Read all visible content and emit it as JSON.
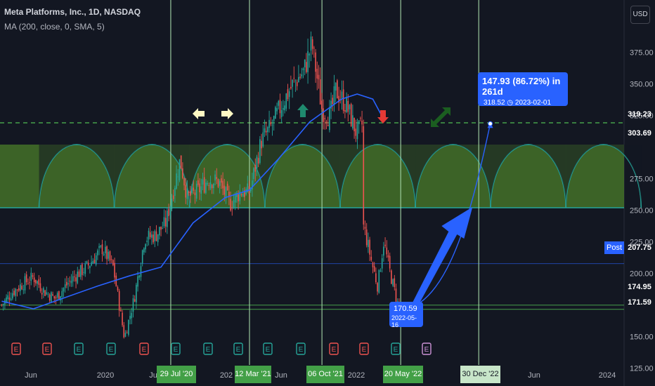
{
  "header": {
    "title": "Meta Platforms, Inc., 1D, NASDAQ",
    "indicator": "MA (200, close, 0, SMA, 5)"
  },
  "currency": "USD",
  "colors": {
    "bg": "#131722",
    "grid": "#1e2230",
    "text": "#d1d4dc",
    "up": "#26a69a",
    "down": "#ef5350",
    "ma": "#2962ff",
    "vline": "#a5d6a7",
    "zone": "#4b7d2a",
    "arc": "#26a69a",
    "dashed": "#4caf50",
    "projection": "#2962ff",
    "arrow_yellow": "#fff9c4",
    "arrow_green": "#1f8a6e",
    "arrow_red": "#e53935",
    "arrow_dark": "#1b5e20"
  },
  "price_axis": {
    "ticks": [
      "375.00",
      "350.00",
      "325.00",
      "275.00",
      "250.00",
      "225.00",
      "200.00",
      "150.00",
      "125.00"
    ],
    "tags": [
      {
        "label": "319.23",
        "bg": "#4caf50"
      },
      {
        "label": "303.69",
        "bg": "#2962ff"
      },
      {
        "label": "207.75",
        "bg": "#2962ff"
      },
      {
        "label": "174.95",
        "bg": "#388e3c"
      },
      {
        "label": "171.59",
        "bg": "#43a047"
      }
    ],
    "post_label": "Post"
  },
  "time_axis": {
    "labels": [
      "Jun",
      "2020",
      "Ju",
      "202",
      "Jun",
      "2022",
      "Jun",
      "2024"
    ],
    "marked_dates": [
      "29 Jul '20",
      "12 Mar '21",
      "06 Oct '21",
      "20 May '22",
      "30 Dec '22"
    ]
  },
  "annotations": {
    "projection_main": "147.93 (86.72%) in 261d",
    "projection_sub": "318.52",
    "projection_date": "2023-02-01",
    "low_price": "170.59",
    "low_date": "2022-05-16"
  },
  "events": [
    "E",
    "E",
    "E",
    "E",
    "E",
    "E",
    "E",
    "E",
    "E",
    "E",
    "E",
    "E",
    "E",
    "E"
  ],
  "event_colors": [
    "#ef5350",
    "#ef5350",
    "#26a69a",
    "#26a69a",
    "#ef5350",
    "#26a69a",
    "#26a69a",
    "#26a69a",
    "#26a69a",
    "#26a69a",
    "#ef5350",
    "#ef5350",
    "#26a69a",
    "#ce93d8"
  ],
  "chart_data": {
    "type": "candlestick",
    "title": "Meta Platforms, Inc., 1D, NASDAQ",
    "ylim": [
      112,
      412
    ],
    "xlim": [
      "2019-03-27",
      "2024-02-20"
    ],
    "close_path": [
      [
        "2019-04-01",
        175
      ],
      [
        "2019-05-01",
        185
      ],
      [
        "2019-06-01",
        192
      ],
      [
        "2019-07-01",
        197
      ],
      [
        "2019-08-01",
        186
      ],
      [
        "2019-09-01",
        180
      ],
      [
        "2019-10-01",
        190
      ],
      [
        "2019-11-01",
        199
      ],
      [
        "2019-12-01",
        205
      ],
      [
        "2020-01-15",
        220
      ],
      [
        "2020-02-15",
        205
      ],
      [
        "2020-03-18",
        149
      ],
      [
        "2020-04-15",
        180
      ],
      [
        "2020-05-15",
        228
      ],
      [
        "2020-06-15",
        230
      ],
      [
        "2020-07-15",
        240
      ],
      [
        "2020-08-25",
        290
      ],
      [
        "2020-09-15",
        260
      ],
      [
        "2020-10-15",
        265
      ],
      [
        "2020-11-15",
        275
      ],
      [
        "2020-12-15",
        272
      ],
      [
        "2021-01-15",
        255
      ],
      [
        "2021-02-15",
        265
      ],
      [
        "2021-03-12",
        264
      ],
      [
        "2021-04-15",
        305
      ],
      [
        "2021-05-15",
        317
      ],
      [
        "2021-06-15",
        335
      ],
      [
        "2021-07-15",
        350
      ],
      [
        "2021-08-15",
        360
      ],
      [
        "2021-09-07",
        382
      ],
      [
        "2021-10-06",
        330
      ],
      [
        "2021-10-29",
        324
      ],
      [
        "2021-11-15",
        345
      ],
      [
        "2021-12-15",
        333
      ],
      [
        "2022-01-15",
        310
      ],
      [
        "2022-02-02",
        320
      ],
      [
        "2022-02-03",
        237
      ],
      [
        "2022-03-01",
        205
      ],
      [
        "2022-03-15",
        190
      ],
      [
        "2022-04-01",
        225
      ],
      [
        "2022-04-20",
        200
      ],
      [
        "2022-05-16",
        170.59
      ]
    ],
    "moving_average": {
      "name": "MA (200, close, 0, SMA, 5)",
      "points": [
        [
          "2019-04-01",
          178
        ],
        [
          "2019-07-01",
          172
        ],
        [
          "2019-10-01",
          181
        ],
        [
          "2020-01-01",
          190
        ],
        [
          "2020-04-01",
          198
        ],
        [
          "2020-07-01",
          205
        ],
        [
          "2020-10-01",
          240
        ],
        [
          "2021-01-01",
          260
        ],
        [
          "2021-03-12",
          266
        ],
        [
          "2021-06-01",
          290
        ],
        [
          "2021-09-01",
          320
        ],
        [
          "2021-12-01",
          338
        ],
        [
          "2022-01-15",
          342
        ],
        [
          "2022-03-01",
          338
        ],
        [
          "2022-04-01",
          322
        ]
      ]
    },
    "horizontal_levels": [
      319.23,
      303.69,
      207.75,
      174.95,
      171.59
    ],
    "vertical_markers": [
      "2020-07-29",
      "2021-03-12",
      "2021-10-06",
      "2022-05-20",
      "2022-12-30"
    ],
    "cycle_zone": {
      "low": 252,
      "high": 302,
      "period_days": 216
    },
    "low": {
      "date": "2022-05-16",
      "price": 170.59
    },
    "projection": {
      "from": {
        "date": "2022-05-16",
        "price": 170.59
      },
      "to": {
        "date": "2023-02-01",
        "price": 318.52
      },
      "change": 147.93,
      "change_pct": 86.72,
      "days": 261
    }
  }
}
